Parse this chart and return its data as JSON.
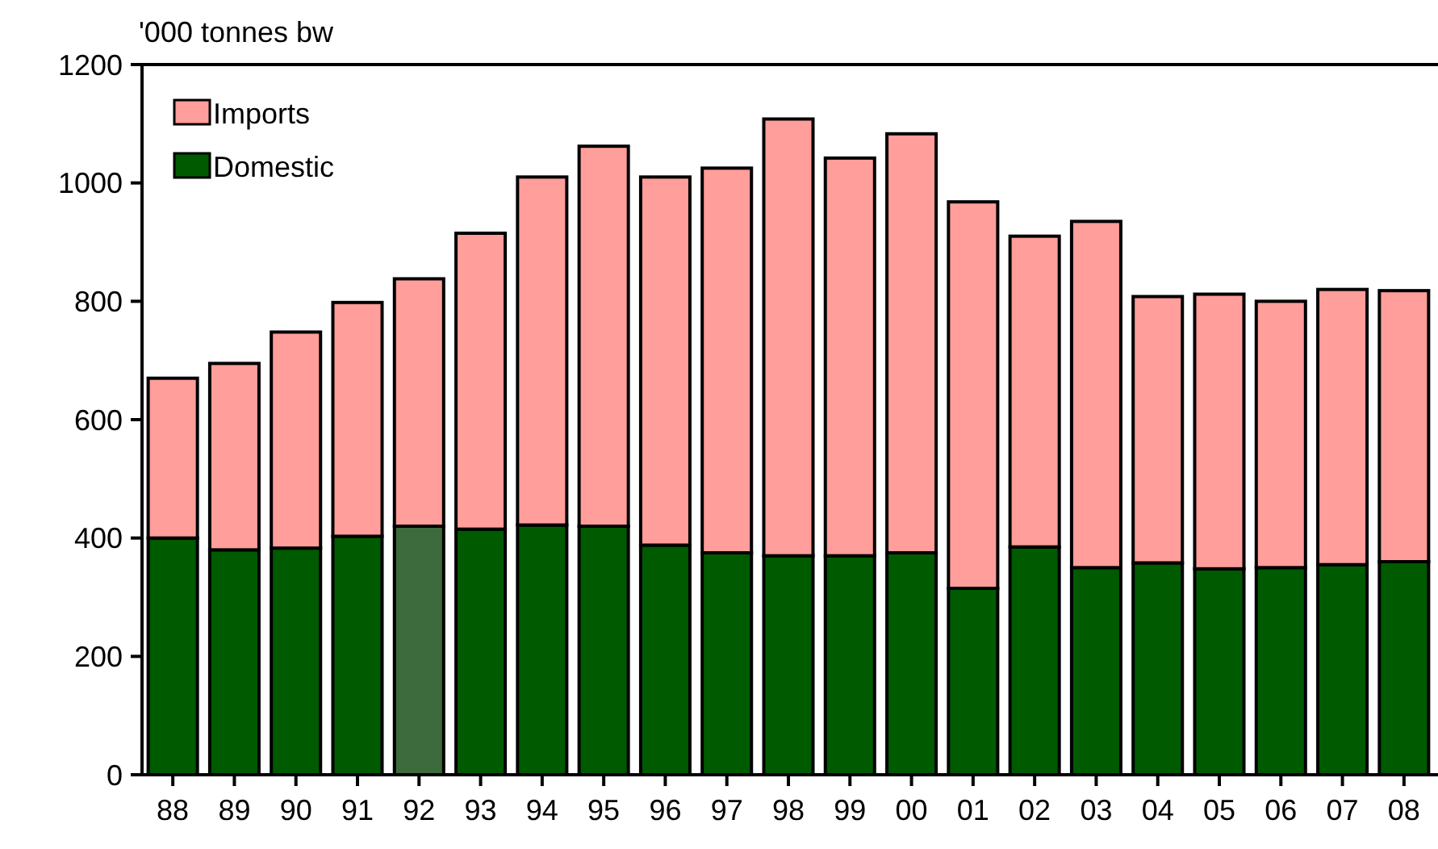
{
  "chart_data": {
    "type": "bar",
    "stacked": true,
    "ylabel": "'000 tonnes bw",
    "categories": [
      "88",
      "89",
      "90",
      "91",
      "92",
      "93",
      "94",
      "95",
      "96",
      "97",
      "98",
      "99",
      "00",
      "01",
      "02",
      "03",
      "04",
      "05",
      "06",
      "07",
      "08"
    ],
    "series": [
      {
        "name": "Domestic",
        "color": "#005a00",
        "colors": [
          "#005a00",
          "#005a00",
          "#005a00",
          "#005a00",
          "#3d6b3d",
          "#005a00",
          "#005a00",
          "#005a00",
          "#005a00",
          "#005a00",
          "#005a00",
          "#005a00",
          "#005a00",
          "#005a00",
          "#005a00",
          "#005a00",
          "#005a00",
          "#005a00",
          "#005a00",
          "#005a00",
          "#005a00"
        ],
        "values": [
          400,
          380,
          383,
          403,
          420,
          415,
          422,
          420,
          388,
          375,
          370,
          370,
          375,
          315,
          385,
          350,
          358,
          348,
          350,
          355,
          360
        ]
      },
      {
        "name": "Imports",
        "color": "#ff9e9a",
        "values": [
          270,
          315,
          365,
          395,
          418,
          500,
          588,
          642,
          622,
          650,
          738,
          672,
          708,
          653,
          525,
          585,
          450,
          464,
          450,
          465,
          458
        ]
      }
    ],
    "ylim": [
      0,
      1200
    ],
    "yticks": [
      0,
      200,
      400,
      600,
      800,
      1000,
      1200
    ],
    "grid": false,
    "legend": "top left"
  }
}
